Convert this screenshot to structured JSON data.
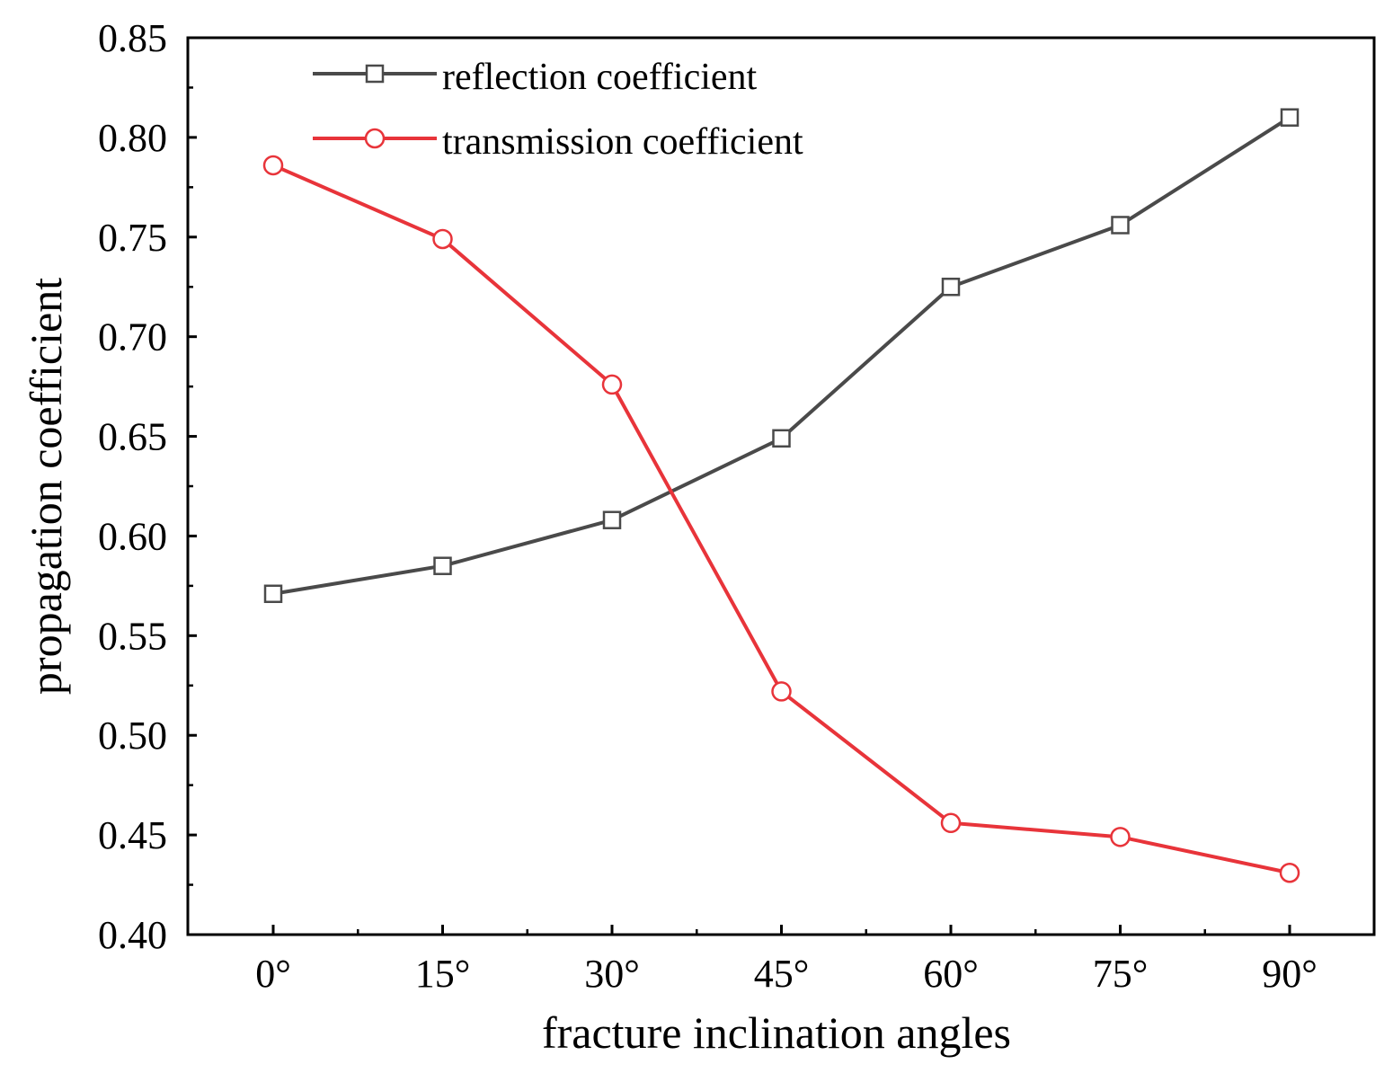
{
  "chart_data": {
    "type": "line",
    "title": "",
    "xlabel": "fracture inclination angles",
    "ylabel": "propagation coefficient",
    "categories": [
      "0°",
      "15°",
      "30°",
      "45°",
      "60°",
      "75°",
      "90°"
    ],
    "ylim": [
      0.4,
      0.85
    ],
    "yticks": [
      "0.40",
      "0.45",
      "0.50",
      "0.55",
      "0.60",
      "0.65",
      "0.70",
      "0.75",
      "0.80",
      "0.85"
    ],
    "ytick_values": [
      0.4,
      0.45,
      0.5,
      0.55,
      0.6,
      0.65,
      0.7,
      0.75,
      0.8,
      0.85
    ],
    "grid": false,
    "legend_position": "top-left",
    "series": [
      {
        "name": "reflection coefficient",
        "marker": "square",
        "color": "#4a4a4a",
        "values": [
          0.571,
          0.585,
          0.608,
          0.649,
          0.725,
          0.756,
          0.81
        ]
      },
      {
        "name": "transmission coefficient",
        "marker": "circle",
        "color": "#e8343a",
        "values": [
          0.786,
          0.749,
          0.676,
          0.522,
          0.456,
          0.449,
          0.431
        ]
      }
    ]
  }
}
